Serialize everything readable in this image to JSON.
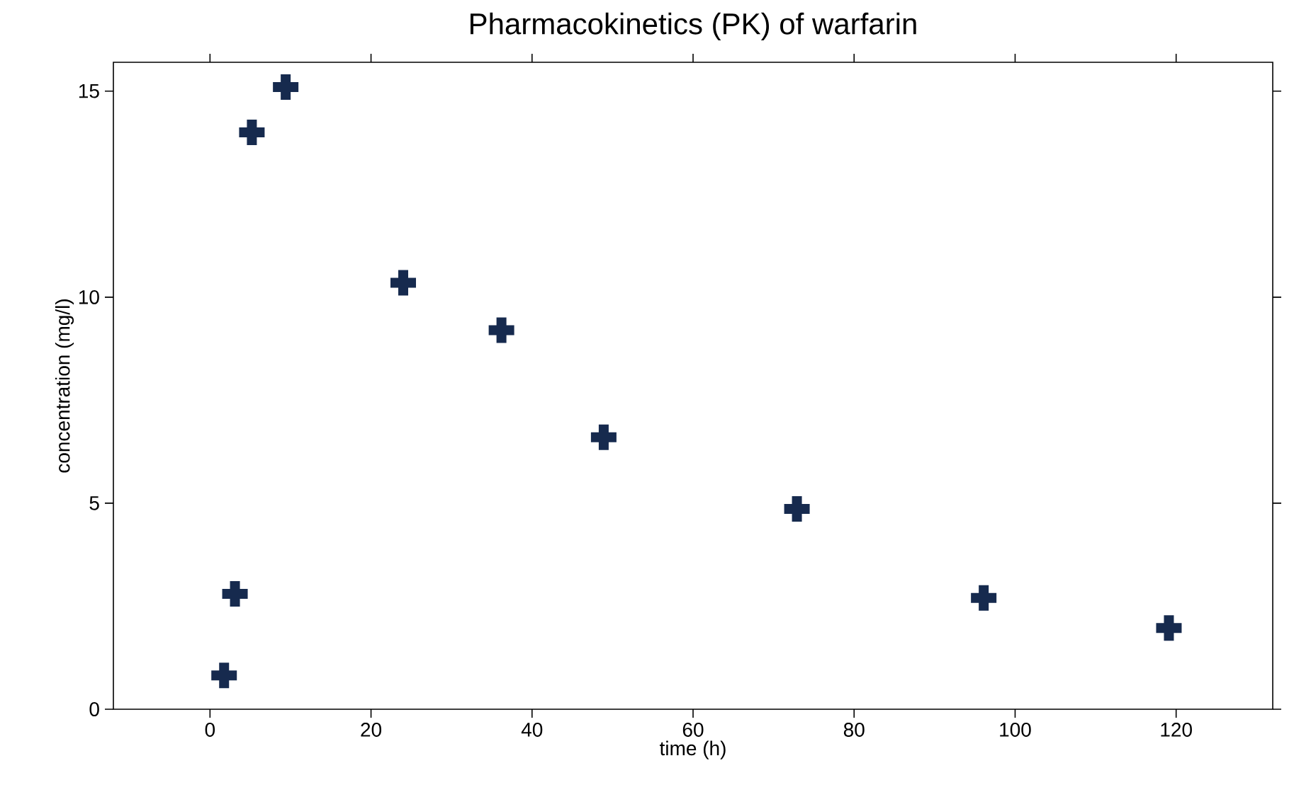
{
  "chart_data": {
    "type": "scatter",
    "title": "Pharmacokinetics (PK) of warfarin",
    "xlabel": "time (h)",
    "ylabel": "concentration (mg/l)",
    "x": [
      1.75,
      3.1,
      5.2,
      9.4,
      24.0,
      36.2,
      48.9,
      72.9,
      96.1,
      119.1
    ],
    "values": [
      0.82,
      2.8,
      14.0,
      15.1,
      10.35,
      9.2,
      6.6,
      4.86,
      2.7,
      1.97
    ],
    "color": "#162a4e",
    "marker": "cross",
    "xlim": [
      -12,
      132
    ],
    "ylim": [
      0,
      15.7
    ],
    "xticks": [
      0,
      20,
      40,
      60,
      80,
      100,
      120
    ],
    "yticks": [
      0,
      5,
      10,
      15
    ]
  }
}
